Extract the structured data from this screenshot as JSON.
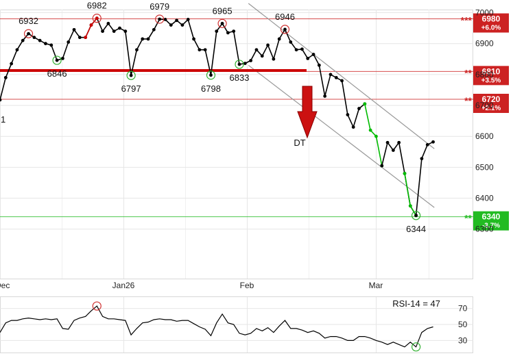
{
  "chart_data": {
    "type": "line",
    "ylim": [
      6140,
      7010
    ],
    "grid": true,
    "x_tick_labels": [
      "Dec",
      "Jan26",
      "Feb",
      "Mar"
    ],
    "y_tick_labels": [
      6300,
      6400,
      6500,
      6600,
      6700,
      6800,
      6900,
      7000
    ],
    "series": [
      {
        "values": [
          6718,
          6790,
          6835,
          6880,
          6910,
          6932,
          6920,
          6910,
          6900,
          6895,
          6846,
          6852,
          6905,
          6945,
          6920,
          6920,
          6960,
          6982,
          6940,
          6965,
          6940,
          6950,
          6940,
          6797,
          6880,
          6915,
          6915,
          6945,
          6979,
          6978,
          6960,
          6975,
          6960,
          6978,
          6915,
          6880,
          6880,
          6798,
          6940,
          6965,
          6935,
          6940,
          6833,
          6836,
          6845,
          6880,
          6860,
          6895,
          6850,
          6915,
          6946,
          6905,
          6880,
          6882,
          6852,
          6865,
          6830,
          6730,
          6800,
          6790,
          6780,
          6670,
          6630,
          6690,
          6705
        ],
        "color": "#000000"
      },
      {
        "values": [
          6705,
          6620,
          6600,
          6505
        ],
        "start_index": 64,
        "color": "#00bb00"
      },
      {
        "values": [
          6505,
          6580,
          6555,
          6580,
          6480,
          6375,
          6344
        ],
        "start_index": 67,
        "color": "#000000"
      },
      {
        "values": [
          6480,
          6375,
          6344
        ],
        "start_index": 71,
        "color": "#00bb00"
      },
      {
        "values": [
          6344,
          6528,
          6573,
          6582
        ],
        "start_index": 73,
        "color": "#000000"
      },
      {
        "values": [
          6920,
          6960,
          6982
        ],
        "start_index": 15,
        "color": "#cc0000"
      }
    ],
    "peak_markers": [
      {
        "index": 5,
        "label": "6932"
      },
      {
        "index": 17,
        "label": "6982"
      },
      {
        "index": 28,
        "label": "6979"
      },
      {
        "index": 39,
        "label": "6965"
      },
      {
        "index": 50,
        "label": "6946"
      }
    ],
    "trough_markers": [
      {
        "index": 10,
        "label": "6846"
      },
      {
        "index": 23,
        "label": "6797"
      },
      {
        "index": 37,
        "label": "6798"
      },
      {
        "index": 42,
        "label": "6833"
      },
      {
        "index": 73,
        "label": "6344"
      }
    ],
    "edge_label": "1",
    "signal": {
      "label": "DT",
      "index": 54
    },
    "levels": [
      {
        "value": 6980,
        "label": "6980",
        "change": "+6.0%",
        "stars": "***",
        "color": "#cc2222"
      },
      {
        "value": 6810,
        "label": "6810",
        "change": "+3.5%",
        "stars": "**",
        "color": "#cc2222"
      },
      {
        "value": 6720,
        "label": "6720",
        "change": "+2.1%",
        "stars": "**",
        "color": "#cc2222"
      },
      {
        "value": 6340,
        "label": "6340",
        "change": "-3.7%",
        "stars": "**",
        "color": "#22bb22"
      }
    ],
    "channel": {
      "upper": [
        {
          "index": 46,
          "value": 7030
        },
        {
          "index": 75,
          "value": 6560
        }
      ],
      "lower": [
        {
          "index": 46,
          "value": 6830
        },
        {
          "index": 75,
          "value": 6370
        }
      ]
    },
    "rsi": {
      "label": "RSI-14 = 47",
      "ticks": [
        70,
        50,
        30
      ],
      "ylim": [
        15,
        85
      ],
      "values": [
        40,
        52,
        55,
        55,
        57,
        58,
        57,
        56,
        57,
        56,
        57,
        45,
        44,
        55,
        58,
        60,
        67,
        73,
        60,
        57,
        57,
        56,
        55,
        37,
        45,
        52,
        53,
        56,
        57,
        56,
        56,
        54,
        55,
        55,
        51,
        47,
        44,
        36,
        52,
        63,
        52,
        50,
        39,
        37,
        39,
        45,
        42,
        46,
        40,
        48,
        55,
        45,
        45,
        43,
        40,
        42,
        39,
        33,
        35,
        35,
        33,
        30,
        30,
        35,
        35,
        33,
        30,
        28,
        25,
        28,
        25,
        22,
        28,
        22,
        40,
        45,
        47
      ],
      "overbought_index": 17,
      "oversold_index": 73
    }
  }
}
